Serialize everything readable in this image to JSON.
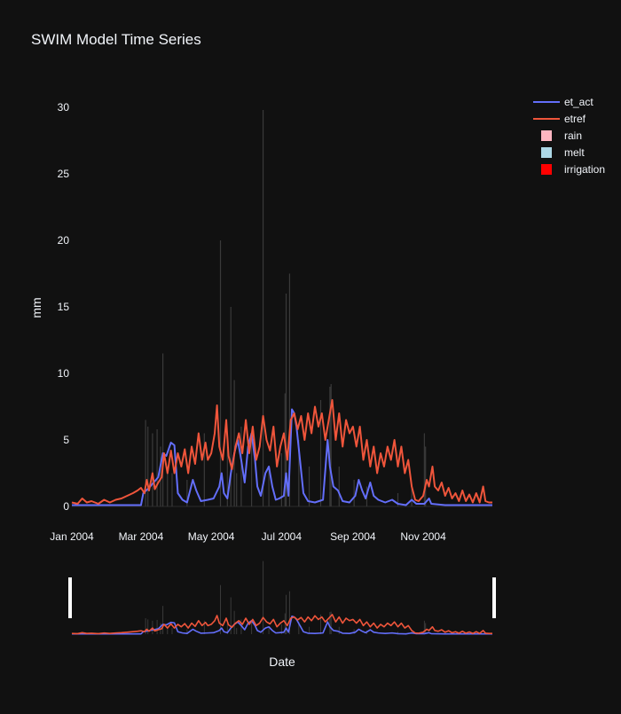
{
  "chart_data": {
    "type": "line",
    "title": "SWIM Model Time Series",
    "xlabel": "Date",
    "ylabel": "mm",
    "ylim": [
      0,
      30
    ],
    "xlim": [
      "2004-01-01",
      "2004-12-31"
    ],
    "x_ticks": [
      {
        "date": "2004-01-01",
        "label": "Jan 2004"
      },
      {
        "date": "2004-03-01",
        "label": "Mar 2004"
      },
      {
        "date": "2004-05-01",
        "label": "May 2004"
      },
      {
        "date": "2004-07-01",
        "label": "Jul 2004"
      },
      {
        "date": "2004-09-01",
        "label": "Sep 2004"
      },
      {
        "date": "2004-11-01",
        "label": "Nov 2004"
      }
    ],
    "y_ticks": [
      0,
      5,
      10,
      15,
      20,
      25,
      30
    ],
    "grid": false,
    "legend_position": "top-right",
    "range_slider": true,
    "series": [
      {
        "name": "et_act",
        "kind": "line",
        "color": "#636efa",
        "points": [
          [
            "2004-01-01",
            0.1
          ],
          [
            "2004-02-15",
            0.1
          ],
          [
            "2004-03-01",
            0.1
          ],
          [
            "2004-03-03",
            1.0
          ],
          [
            "2004-03-08",
            1.4
          ],
          [
            "2004-03-12",
            1.8
          ],
          [
            "2004-03-16",
            2.2
          ],
          [
            "2004-03-20",
            4.0
          ],
          [
            "2004-03-23",
            3.8
          ],
          [
            "2004-03-27",
            4.8
          ],
          [
            "2004-03-30",
            4.6
          ],
          [
            "2004-04-02",
            1.0
          ],
          [
            "2004-04-06",
            0.5
          ],
          [
            "2004-04-10",
            0.3
          ],
          [
            "2004-04-15",
            2.0
          ],
          [
            "2004-04-18",
            1.2
          ],
          [
            "2004-04-22",
            0.4
          ],
          [
            "2004-04-28",
            0.5
          ],
          [
            "2004-05-03",
            0.6
          ],
          [
            "2004-05-08",
            1.5
          ],
          [
            "2004-05-10",
            2.5
          ],
          [
            "2004-05-12",
            1.0
          ],
          [
            "2004-05-15",
            0.6
          ],
          [
            "2004-05-18",
            2.5
          ],
          [
            "2004-05-21",
            4.0
          ],
          [
            "2004-05-24",
            5.0
          ],
          [
            "2004-05-27",
            3.5
          ],
          [
            "2004-05-30",
            1.8
          ],
          [
            "2004-06-02",
            4.5
          ],
          [
            "2004-06-05",
            5.5
          ],
          [
            "2004-06-08",
            3.5
          ],
          [
            "2004-06-10",
            1.5
          ],
          [
            "2004-06-13",
            0.8
          ],
          [
            "2004-06-17",
            2.5
          ],
          [
            "2004-06-20",
            3.0
          ],
          [
            "2004-06-23",
            1.5
          ],
          [
            "2004-06-26",
            0.5
          ],
          [
            "2004-06-29",
            0.6
          ],
          [
            "2004-07-03",
            0.8
          ],
          [
            "2004-07-05",
            2.5
          ],
          [
            "2004-07-07",
            0.8
          ],
          [
            "2004-07-10",
            7.3
          ],
          [
            "2004-07-12",
            7.0
          ],
          [
            "2004-07-14",
            6.0
          ],
          [
            "2004-07-17",
            3.5
          ],
          [
            "2004-07-20",
            1.0
          ],
          [
            "2004-07-24",
            0.4
          ],
          [
            "2004-07-30",
            0.3
          ],
          [
            "2004-08-06",
            0.5
          ],
          [
            "2004-08-10",
            5.0
          ],
          [
            "2004-08-12",
            3.0
          ],
          [
            "2004-08-15",
            1.5
          ],
          [
            "2004-08-19",
            1.2
          ],
          [
            "2004-08-23",
            0.4
          ],
          [
            "2004-08-29",
            0.3
          ],
          [
            "2004-09-03",
            0.8
          ],
          [
            "2004-09-06",
            2.0
          ],
          [
            "2004-09-09",
            1.2
          ],
          [
            "2004-09-12",
            0.6
          ],
          [
            "2004-09-16",
            1.8
          ],
          [
            "2004-09-19",
            0.8
          ],
          [
            "2004-09-23",
            0.5
          ],
          [
            "2004-09-29",
            0.3
          ],
          [
            "2004-10-05",
            0.5
          ],
          [
            "2004-10-10",
            0.2
          ],
          [
            "2004-10-17",
            0.1
          ],
          [
            "2004-10-22",
            0.5
          ],
          [
            "2004-10-26",
            0.2
          ],
          [
            "2004-11-02",
            0.2
          ],
          [
            "2004-11-06",
            0.6
          ],
          [
            "2004-11-08",
            0.2
          ],
          [
            "2004-11-20",
            0.1
          ],
          [
            "2004-12-15",
            0.1
          ],
          [
            "2004-12-31",
            0.1
          ]
        ]
      },
      {
        "name": "etref",
        "kind": "line",
        "color": "#ef553b",
        "points": [
          [
            "2004-01-01",
            0.3
          ],
          [
            "2004-01-06",
            0.2
          ],
          [
            "2004-01-10",
            0.6
          ],
          [
            "2004-01-14",
            0.3
          ],
          [
            "2004-01-18",
            0.4
          ],
          [
            "2004-01-24",
            0.2
          ],
          [
            "2004-01-29",
            0.5
          ],
          [
            "2004-02-03",
            0.3
          ],
          [
            "2004-02-08",
            0.5
          ],
          [
            "2004-02-13",
            0.6
          ],
          [
            "2004-02-18",
            0.8
          ],
          [
            "2004-02-23",
            1.0
          ],
          [
            "2004-02-27",
            1.2
          ],
          [
            "2004-03-01",
            1.4
          ],
          [
            "2004-03-04",
            1.0
          ],
          [
            "2004-03-06",
            2.0
          ],
          [
            "2004-03-08",
            1.2
          ],
          [
            "2004-03-11",
            2.5
          ],
          [
            "2004-03-13",
            1.3
          ],
          [
            "2004-03-16",
            1.8
          ],
          [
            "2004-03-19",
            2.2
          ],
          [
            "2004-03-21",
            4.0
          ],
          [
            "2004-03-24",
            2.5
          ],
          [
            "2004-03-27",
            4.2
          ],
          [
            "2004-03-30",
            2.5
          ],
          [
            "2004-04-02",
            4.0
          ],
          [
            "2004-04-05",
            3.0
          ],
          [
            "2004-04-08",
            4.3
          ],
          [
            "2004-04-11",
            2.5
          ],
          [
            "2004-04-14",
            4.5
          ],
          [
            "2004-04-17",
            3.2
          ],
          [
            "2004-04-20",
            5.5
          ],
          [
            "2004-04-23",
            3.5
          ],
          [
            "2004-04-26",
            4.8
          ],
          [
            "2004-04-28",
            3.5
          ],
          [
            "2004-05-01",
            4.0
          ],
          [
            "2004-05-04",
            5.5
          ],
          [
            "2004-05-06",
            7.6
          ],
          [
            "2004-05-08",
            4.5
          ],
          [
            "2004-05-11",
            3.5
          ],
          [
            "2004-05-14",
            6.5
          ],
          [
            "2004-05-16",
            3.8
          ],
          [
            "2004-05-19",
            2.8
          ],
          [
            "2004-05-22",
            4.5
          ],
          [
            "2004-05-25",
            5.5
          ],
          [
            "2004-05-28",
            4.0
          ],
          [
            "2004-05-31",
            6.5
          ],
          [
            "2004-06-03",
            4.0
          ],
          [
            "2004-06-06",
            6.0
          ],
          [
            "2004-06-09",
            3.5
          ],
          [
            "2004-06-12",
            4.5
          ],
          [
            "2004-06-15",
            6.8
          ],
          [
            "2004-06-18",
            5.0
          ],
          [
            "2004-06-21",
            4.2
          ],
          [
            "2004-06-24",
            6.0
          ],
          [
            "2004-06-27",
            3.0
          ],
          [
            "2004-06-30",
            4.5
          ],
          [
            "2004-07-03",
            5.5
          ],
          [
            "2004-07-06",
            3.5
          ],
          [
            "2004-07-09",
            6.5
          ],
          [
            "2004-07-12",
            7.0
          ],
          [
            "2004-07-15",
            5.8
          ],
          [
            "2004-07-18",
            6.8
          ],
          [
            "2004-07-21",
            5.0
          ],
          [
            "2004-07-24",
            7.0
          ],
          [
            "2004-07-27",
            5.5
          ],
          [
            "2004-07-30",
            7.5
          ],
          [
            "2004-08-02",
            6.0
          ],
          [
            "2004-08-05",
            7.0
          ],
          [
            "2004-08-08",
            5.0
          ],
          [
            "2004-08-11",
            6.5
          ],
          [
            "2004-08-14",
            8.0
          ],
          [
            "2004-08-17",
            5.0
          ],
          [
            "2004-08-20",
            7.0
          ],
          [
            "2004-08-23",
            4.5
          ],
          [
            "2004-08-26",
            6.5
          ],
          [
            "2004-08-29",
            5.5
          ],
          [
            "2004-09-01",
            6.0
          ],
          [
            "2004-09-04",
            4.5
          ],
          [
            "2004-09-07",
            6.0
          ],
          [
            "2004-09-10",
            3.5
          ],
          [
            "2004-09-13",
            5.0
          ],
          [
            "2004-09-16",
            3.0
          ],
          [
            "2004-09-19",
            4.5
          ],
          [
            "2004-09-22",
            2.5
          ],
          [
            "2004-09-25",
            4.0
          ],
          [
            "2004-09-28",
            3.0
          ],
          [
            "2004-10-01",
            4.5
          ],
          [
            "2004-10-04",
            3.5
          ],
          [
            "2004-10-07",
            5.0
          ],
          [
            "2004-10-10",
            3.0
          ],
          [
            "2004-10-13",
            4.5
          ],
          [
            "2004-10-16",
            2.5
          ],
          [
            "2004-10-19",
            3.5
          ],
          [
            "2004-10-22",
            1.5
          ],
          [
            "2004-10-25",
            0.5
          ],
          [
            "2004-10-28",
            0.4
          ],
          [
            "2004-11-01",
            0.8
          ],
          [
            "2004-11-04",
            2.0
          ],
          [
            "2004-11-06",
            1.5
          ],
          [
            "2004-11-09",
            3.0
          ],
          [
            "2004-11-11",
            1.5
          ],
          [
            "2004-11-14",
            1.2
          ],
          [
            "2004-11-17",
            1.8
          ],
          [
            "2004-11-20",
            0.8
          ],
          [
            "2004-11-23",
            1.4
          ],
          [
            "2004-11-26",
            0.6
          ],
          [
            "2004-11-29",
            1.0
          ],
          [
            "2004-12-02",
            0.4
          ],
          [
            "2004-12-05",
            1.2
          ],
          [
            "2004-12-08",
            0.4
          ],
          [
            "2004-12-11",
            0.9
          ],
          [
            "2004-12-14",
            0.3
          ],
          [
            "2004-12-17",
            1.0
          ],
          [
            "2004-12-20",
            0.3
          ],
          [
            "2004-12-23",
            1.5
          ],
          [
            "2004-12-25",
            0.4
          ],
          [
            "2004-12-28",
            0.3
          ],
          [
            "2004-12-31",
            0.3
          ]
        ]
      },
      {
        "name": "rain",
        "kind": "bar",
        "color": "#ffb6c1",
        "render_color": "#3a3a3a",
        "points": [
          [
            "2004-03-05",
            6.5
          ],
          [
            "2004-03-07",
            6.0
          ],
          [
            "2004-03-11",
            5.5
          ],
          [
            "2004-03-15",
            5.8
          ],
          [
            "2004-03-18",
            4.5
          ],
          [
            "2004-03-20",
            11.5
          ],
          [
            "2004-03-24",
            3.0
          ],
          [
            "2004-03-28",
            2.5
          ],
          [
            "2004-04-10",
            2.0
          ],
          [
            "2004-04-25",
            5.5
          ],
          [
            "2004-05-09",
            20.0
          ],
          [
            "2004-05-15",
            5.0
          ],
          [
            "2004-05-18",
            15.0
          ],
          [
            "2004-05-21",
            9.5
          ],
          [
            "2004-05-23",
            2.5
          ],
          [
            "2004-05-27",
            6.0
          ],
          [
            "2004-06-05",
            5.0
          ],
          [
            "2004-06-15",
            29.8
          ],
          [
            "2004-06-20",
            3.0
          ],
          [
            "2004-07-01",
            4.0
          ],
          [
            "2004-07-04",
            8.5
          ],
          [
            "2004-07-05",
            16.0
          ],
          [
            "2004-07-08",
            17.5
          ],
          [
            "2004-07-16",
            5.0
          ],
          [
            "2004-07-25",
            3.0
          ],
          [
            "2004-08-04",
            8.0
          ],
          [
            "2004-08-12",
            9.0
          ],
          [
            "2004-08-13",
            9.2
          ],
          [
            "2004-08-20",
            3.0
          ],
          [
            "2004-09-02",
            2.0
          ],
          [
            "2004-09-13",
            1.5
          ],
          [
            "2004-10-10",
            1.0
          ],
          [
            "2004-10-22",
            1.5
          ],
          [
            "2004-11-02",
            5.5
          ],
          [
            "2004-11-03",
            4.5
          ]
        ]
      },
      {
        "name": "melt",
        "kind": "bar",
        "color": "#add8e6",
        "render_color": "#3a3a3a",
        "points": []
      },
      {
        "name": "irrigation",
        "kind": "bar",
        "color": "#ff0000",
        "render_color": "#3a3a3a",
        "points": []
      }
    ]
  }
}
